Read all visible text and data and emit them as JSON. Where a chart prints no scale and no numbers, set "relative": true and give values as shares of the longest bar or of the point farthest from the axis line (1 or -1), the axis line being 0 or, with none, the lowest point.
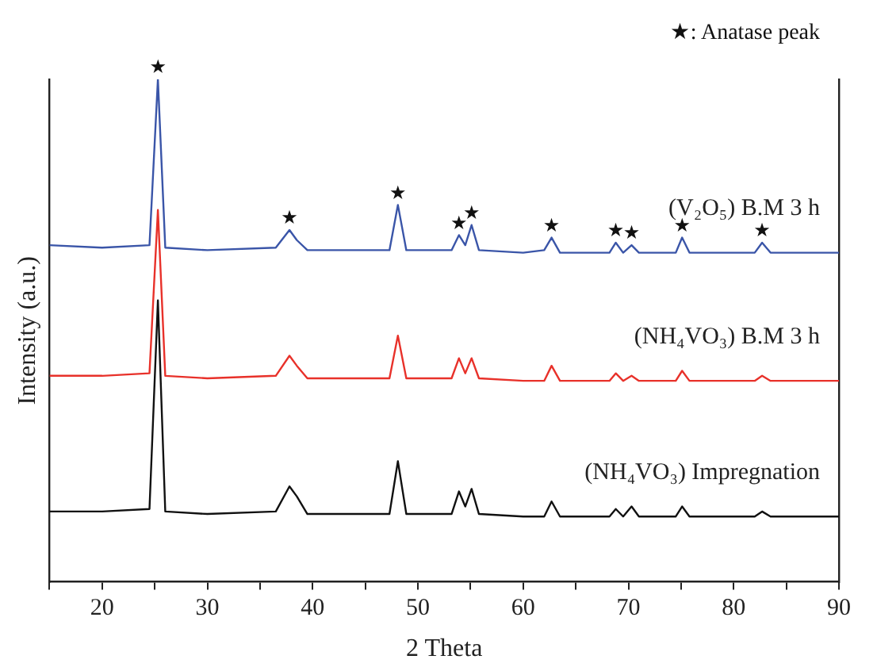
{
  "chart_data": {
    "type": "line",
    "relative": true,
    "xlabel": "2 Theta",
    "ylabel": "Intensity (a.u.)",
    "xlim": [
      15,
      90
    ],
    "xticks": [
      {
        "value": 15,
        "label": null
      },
      20,
      {
        "value": 25,
        "label": null
      },
      30,
      {
        "value": 35,
        "label": null
      },
      40,
      {
        "value": 45,
        "label": null
      },
      50,
      {
        "value": 55,
        "label": null
      },
      60,
      {
        "value": 65,
        "label": null
      },
      70,
      {
        "value": 75,
        "label": null
      },
      80,
      {
        "value": 85,
        "label": null
      },
      90
    ],
    "x": [
      15,
      20,
      24.5,
      25.3,
      26,
      30,
      36.5,
      37.8,
      38.5,
      39.5,
      44,
      47.3,
      48.1,
      48.9,
      53.2,
      53.9,
      54.5,
      55.1,
      55.8,
      60,
      62,
      62.7,
      63.5,
      68.2,
      68.8,
      69.5,
      70.3,
      71,
      74.5,
      75.1,
      75.8,
      82,
      82.7,
      83.5,
      90
    ],
    "series": [
      {
        "name": "(V₂O₅) B.M 3 h",
        "color": "#3a55a8",
        "values": [
          0.67,
          0.665,
          0.67,
          1.0,
          0.665,
          0.66,
          0.665,
          0.7,
          0.68,
          0.66,
          0.66,
          0.66,
          0.75,
          0.66,
          0.66,
          0.69,
          0.67,
          0.71,
          0.66,
          0.655,
          0.66,
          0.685,
          0.655,
          0.655,
          0.675,
          0.655,
          0.67,
          0.655,
          0.655,
          0.685,
          0.655,
          0.655,
          0.675,
          0.655,
          0.655
        ]
      },
      {
        "name": "(NH₄VO₃) B.M 3 h",
        "color": "#e8312a",
        "values": [
          0.41,
          0.41,
          0.415,
          0.74,
          0.41,
          0.405,
          0.41,
          0.45,
          0.43,
          0.405,
          0.405,
          0.405,
          0.49,
          0.405,
          0.405,
          0.445,
          0.415,
          0.445,
          0.405,
          0.4,
          0.4,
          0.43,
          0.4,
          0.4,
          0.415,
          0.4,
          0.41,
          0.4,
          0.4,
          0.42,
          0.4,
          0.4,
          0.41,
          0.4,
          0.4
        ]
      },
      {
        "name": "(NH₄VO₃) Impregnation",
        "color": "#111111",
        "values": [
          0.14,
          0.14,
          0.145,
          0.56,
          0.14,
          0.135,
          0.14,
          0.19,
          0.17,
          0.135,
          0.135,
          0.135,
          0.24,
          0.135,
          0.135,
          0.18,
          0.15,
          0.185,
          0.135,
          0.13,
          0.13,
          0.16,
          0.13,
          0.13,
          0.145,
          0.13,
          0.15,
          0.13,
          0.13,
          0.15,
          0.13,
          0.13,
          0.14,
          0.13,
          0.13
        ]
      }
    ],
    "marker": "none",
    "line_style": "solid",
    "legend": false,
    "grid": false,
    "annotations": [
      "★: Anatase peak",
      {
        "text": "★",
        "x": 25.3,
        "y": 1.0
      },
      {
        "text": "★",
        "x": 37.8,
        "y": 0.7
      },
      {
        "text": "★",
        "x": 48.1,
        "y": 0.75
      },
      {
        "text": "★",
        "x": 53.9,
        "y": 0.69
      },
      {
        "text": "★",
        "x": 55.1,
        "y": 0.71
      },
      {
        "text": "★",
        "x": 62.7,
        "y": 0.685
      },
      {
        "text": "★",
        "x": 68.8,
        "y": 0.675
      },
      {
        "text": "★",
        "x": 70.3,
        "y": 0.67
      },
      {
        "text": "★",
        "x": 75.1,
        "y": 0.685
      },
      {
        "text": "★",
        "x": 82.7,
        "y": 0.675
      }
    ]
  }
}
